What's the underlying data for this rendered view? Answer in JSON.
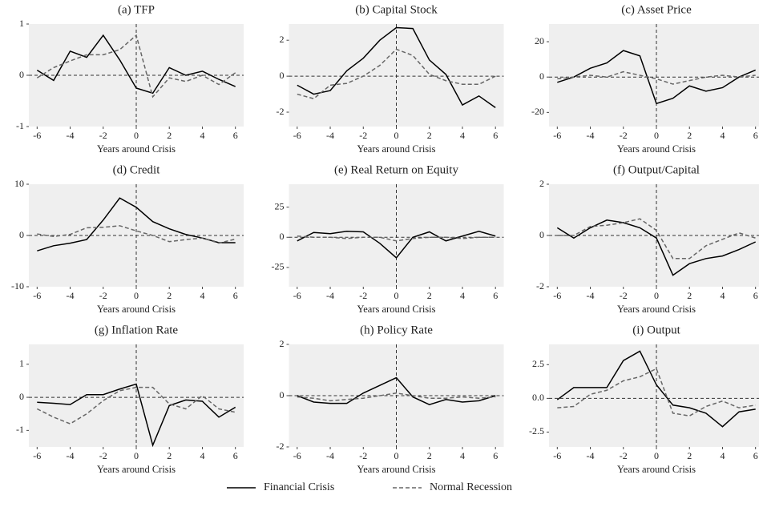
{
  "chart_data": [
    {
      "type": "line",
      "title": "(a) TFP",
      "xlabel": "Years around Crisis",
      "x": [
        -6,
        -5,
        -4,
        -3,
        -2,
        -1,
        0,
        1,
        2,
        3,
        4,
        5,
        6
      ],
      "xlim": [
        -6.5,
        6.5
      ],
      "xticks": [
        -6,
        -4,
        -2,
        0,
        2,
        4,
        6
      ],
      "ylim": [
        -1,
        1
      ],
      "yticks": [
        -1,
        0,
        1
      ],
      "series": [
        {
          "name": "Financial Crisis",
          "color": "#000000",
          "style": "solid",
          "values": [
            0.1,
            -0.1,
            0.47,
            0.35,
            0.78,
            0.3,
            -0.25,
            -0.35,
            0.15,
            0.0,
            0.08,
            -0.08,
            -0.22
          ]
        },
        {
          "name": "Normal Recession",
          "color": "#666666",
          "style": "dashed",
          "values": [
            -0.05,
            0.15,
            0.28,
            0.4,
            0.4,
            0.5,
            0.78,
            -0.42,
            -0.05,
            -0.12,
            0.0,
            -0.18,
            0.05
          ]
        }
      ]
    },
    {
      "type": "line",
      "title": "(b) Capital Stock",
      "xlabel": "Years around Crisis",
      "x": [
        -6,
        -5,
        -4,
        -3,
        -2,
        -1,
        0,
        1,
        2,
        3,
        4,
        5,
        6
      ],
      "xlim": [
        -6.5,
        6.5
      ],
      "xticks": [
        -6,
        -4,
        -2,
        0,
        2,
        4,
        6
      ],
      "ylim": [
        -2.8,
        2.9
      ],
      "yticks": [
        -2,
        0,
        2
      ],
      "series": [
        {
          "name": "Financial Crisis",
          "color": "#000000",
          "style": "solid",
          "values": [
            -0.5,
            -1.0,
            -0.8,
            0.3,
            1.0,
            2.0,
            2.7,
            2.65,
            0.9,
            0.1,
            -1.6,
            -1.1,
            -1.75
          ]
        },
        {
          "name": "Normal Recession",
          "color": "#666666",
          "style": "dashed",
          "values": [
            -1.0,
            -1.25,
            -0.5,
            -0.4,
            0.0,
            0.6,
            1.5,
            1.15,
            0.1,
            -0.25,
            -0.45,
            -0.45,
            0.0
          ]
        }
      ]
    },
    {
      "type": "line",
      "title": "(c) Asset Price",
      "xlabel": "Years around Crisis",
      "x": [
        -6,
        -5,
        -4,
        -3,
        -2,
        -1,
        0,
        1,
        2,
        3,
        4,
        5,
        6
      ],
      "xlim": [
        -6.5,
        6.5
      ],
      "xticks": [
        -6,
        -4,
        -2,
        0,
        2,
        4,
        6
      ],
      "ylim": [
        -28,
        30
      ],
      "yticks": [
        -20,
        0,
        20
      ],
      "series": [
        {
          "name": "Financial Crisis",
          "color": "#000000",
          "style": "solid",
          "values": [
            -3,
            0,
            5,
            8,
            15,
            12,
            -15,
            -12,
            -5,
            -8,
            -6,
            0,
            4
          ]
        },
        {
          "name": "Normal Recession",
          "color": "#666666",
          "style": "dashed",
          "values": [
            -1,
            0,
            1,
            0,
            3,
            1,
            -1,
            -4,
            -2,
            0,
            1,
            0,
            1
          ]
        }
      ]
    },
    {
      "type": "line",
      "title": "(d) Credit",
      "xlabel": "Years around Crisis",
      "x": [
        -6,
        -5,
        -4,
        -3,
        -2,
        -1,
        0,
        1,
        2,
        3,
        4,
        5,
        6
      ],
      "xlim": [
        -6.5,
        6.5
      ],
      "xticks": [
        -6,
        -4,
        -2,
        0,
        2,
        4,
        6
      ],
      "ylim": [
        -10,
        10
      ],
      "yticks": [
        -10,
        0,
        10
      ],
      "series": [
        {
          "name": "Financial Crisis",
          "color": "#000000",
          "style": "solid",
          "values": [
            -3,
            -2,
            -1.5,
            -0.8,
            3,
            7.3,
            5.5,
            2.7,
            1.3,
            0.2,
            -0.5,
            -1.4,
            -1.4
          ]
        },
        {
          "name": "Normal Recession",
          "color": "#666666",
          "style": "dashed",
          "values": [
            0.3,
            -0.2,
            0.2,
            1.5,
            1.6,
            1.9,
            0.9,
            0,
            -1.2,
            -0.8,
            -0.5,
            -1.5,
            -0.7
          ]
        }
      ]
    },
    {
      "type": "line",
      "title": "(e) Real Return on Equity",
      "xlabel": "Years around Crisis",
      "x": [
        -6,
        -5,
        -4,
        -3,
        -2,
        -1,
        0,
        1,
        2,
        3,
        4,
        5,
        6
      ],
      "xlim": [
        -6.5,
        6.5
      ],
      "xticks": [
        -6,
        -4,
        -2,
        0,
        2,
        4,
        6
      ],
      "ylim": [
        -41,
        44
      ],
      "yticks": [
        -25,
        0,
        25
      ],
      "series": [
        {
          "name": "Financial Crisis",
          "color": "#000000",
          "style": "solid",
          "values": [
            -3,
            4,
            3,
            5,
            4.5,
            -5,
            -17,
            0,
            4.5,
            -3,
            1,
            5,
            1
          ]
        },
        {
          "name": "Normal Recession",
          "color": "#666666",
          "style": "dashed",
          "values": [
            1,
            0,
            0,
            -1,
            0,
            0,
            -3,
            -1,
            0,
            0,
            -1,
            0,
            0
          ]
        }
      ]
    },
    {
      "type": "line",
      "title": "(f) Output/Capital",
      "xlabel": "Years around Crisis",
      "x": [
        -6,
        -5,
        -4,
        -3,
        -2,
        -1,
        0,
        1,
        2,
        3,
        4,
        5,
        6
      ],
      "xlim": [
        -6.5,
        6.5
      ],
      "xticks": [
        -6,
        -4,
        -2,
        0,
        2,
        4,
        6
      ],
      "ylim": [
        -2,
        2
      ],
      "yticks": [
        -2,
        0,
        2
      ],
      "series": [
        {
          "name": "Financial Crisis",
          "color": "#000000",
          "style": "solid",
          "values": [
            0.3,
            -0.1,
            0.3,
            0.6,
            0.5,
            0.3,
            -0.1,
            -1.55,
            -1.1,
            -0.9,
            -0.8,
            -0.55,
            -0.25
          ]
        },
        {
          "name": "Normal Recession",
          "color": "#666666",
          "style": "dashed",
          "values": [
            0.0,
            0.0,
            0.35,
            0.4,
            0.5,
            0.65,
            0.2,
            -0.9,
            -0.9,
            -0.4,
            -0.15,
            0.1,
            -0.1
          ]
        }
      ]
    },
    {
      "type": "line",
      "title": "(g) Inflation Rate",
      "xlabel": "Years around Crisis",
      "x": [
        -6,
        -5,
        -4,
        -3,
        -2,
        -1,
        0,
        1,
        2,
        3,
        4,
        5,
        6
      ],
      "xlim": [
        -6.5,
        6.5
      ],
      "xticks": [
        -6,
        -4,
        -2,
        0,
        2,
        4,
        6
      ],
      "ylim": [
        -1.5,
        1.6
      ],
      "yticks": [
        -1,
        0,
        1
      ],
      "series": [
        {
          "name": "Financial Crisis",
          "color": "#000000",
          "style": "solid",
          "values": [
            -0.15,
            -0.18,
            -0.22,
            0.08,
            0.08,
            0.25,
            0.4,
            -1.45,
            -0.25,
            -0.08,
            -0.12,
            -0.6,
            -0.3
          ]
        },
        {
          "name": "Normal Recession",
          "color": "#666666",
          "style": "dashed",
          "values": [
            -0.35,
            -0.6,
            -0.8,
            -0.5,
            -0.1,
            0.2,
            0.3,
            0.3,
            -0.2,
            -0.35,
            0.05,
            -0.35,
            -0.45
          ]
        }
      ]
    },
    {
      "type": "line",
      "title": "(h) Policy Rate",
      "xlabel": "Years around Crisis",
      "x": [
        -6,
        -5,
        -4,
        -3,
        -2,
        -1,
        0,
        1,
        2,
        3,
        4,
        5,
        6
      ],
      "xlim": [
        -6.5,
        6.5
      ],
      "xticks": [
        -6,
        -4,
        -2,
        0,
        2,
        4,
        6
      ],
      "ylim": [
        -2,
        2
      ],
      "yticks": [
        -2,
        0,
        2
      ],
      "series": [
        {
          "name": "Financial Crisis",
          "color": "#000000",
          "style": "solid",
          "values": [
            0,
            -0.25,
            -0.3,
            -0.3,
            0.1,
            0.4,
            0.7,
            -0.05,
            -0.35,
            -0.15,
            -0.25,
            -0.2,
            0
          ]
        },
        {
          "name": "Normal Recession",
          "color": "#666666",
          "style": "dashed",
          "values": [
            -0.05,
            -0.1,
            -0.2,
            -0.15,
            -0.1,
            0,
            0.1,
            0,
            -0.1,
            -0.1,
            -0.05,
            -0.1,
            -0.05
          ]
        }
      ]
    },
    {
      "type": "line",
      "title": "(i) Output",
      "xlabel": "Years around Crisis",
      "x": [
        -6,
        -5,
        -4,
        -3,
        -2,
        -1,
        0,
        1,
        2,
        3,
        4,
        5,
        6
      ],
      "xlim": [
        -6.5,
        6.5
      ],
      "xticks": [
        -6,
        -4,
        -2,
        0,
        2,
        4,
        6
      ],
      "ylim": [
        -3.6,
        4.0
      ],
      "yticks": [
        -2.5,
        {
          "value": 0,
          "label": "0.0"
        },
        2.5
      ],
      "series": [
        {
          "name": "Financial Crisis",
          "color": "#000000",
          "style": "solid",
          "values": [
            -0.1,
            0.8,
            0.8,
            0.8,
            2.8,
            3.5,
            1.0,
            -0.5,
            -0.7,
            -1.1,
            -2.1,
            -1.0,
            -0.8
          ]
        },
        {
          "name": "Normal Recession",
          "color": "#666666",
          "style": "dashed",
          "values": [
            -0.7,
            -0.6,
            0.3,
            0.6,
            1.3,
            1.6,
            2.2,
            -1.1,
            -1.3,
            -0.6,
            -0.2,
            -0.7,
            -0.5
          ]
        }
      ]
    }
  ]
}
